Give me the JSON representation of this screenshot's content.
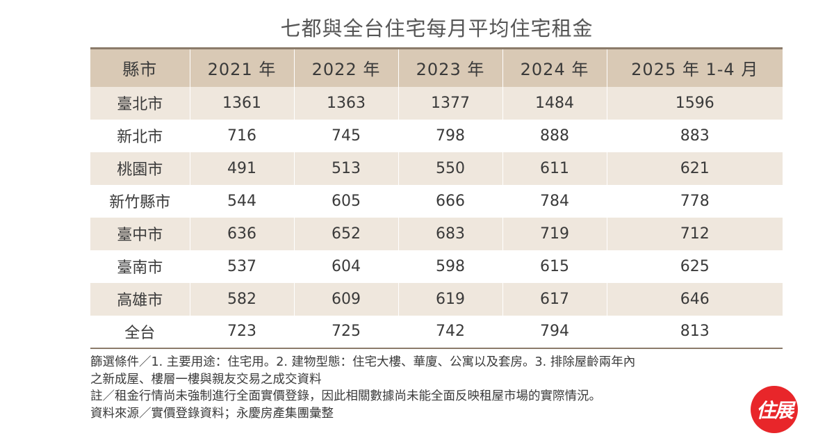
{
  "title": "七都與全台住宅每月平均住宅租金",
  "table": {
    "headers": [
      "縣市",
      "2021 年",
      "2022 年",
      "2023 年",
      "2024 年",
      "2025 年 1-4 月"
    ],
    "rows": [
      [
        "臺北市",
        "1361",
        "1363",
        "1377",
        "1484",
        "1596"
      ],
      [
        "新北市",
        "716",
        "745",
        "798",
        "888",
        "883"
      ],
      [
        "桃園市",
        "491",
        "513",
        "550",
        "611",
        "621"
      ],
      [
        "新竹縣市",
        "544",
        "605",
        "666",
        "784",
        "778"
      ],
      [
        "臺中市",
        "636",
        "652",
        "683",
        "719",
        "712"
      ],
      [
        "臺南市",
        "537",
        "604",
        "598",
        "615",
        "625"
      ],
      [
        "高雄市",
        "582",
        "609",
        "619",
        "617",
        "646"
      ],
      [
        "全台",
        "723",
        "725",
        "742",
        "794",
        "813"
      ]
    ]
  },
  "notes": {
    "filter_line1": "篩選條件／1. 主要用途：住宅用。2. 建物型態：住宅大樓、華廈、公寓以及套房。3. 排除屋齡兩年內",
    "filter_line2": "之新成屋、樓層一樓與親友交易之成交資料",
    "remark": "註／租金行情尚未強制進行全面實價登錄，因此相關數據尚未能全面反映租屋市場的實際情況。",
    "source": "資料來源／實價登錄資料；永慶房產集團彙整"
  },
  "logo": {
    "text": "住展",
    "color": "#e8262a"
  }
}
